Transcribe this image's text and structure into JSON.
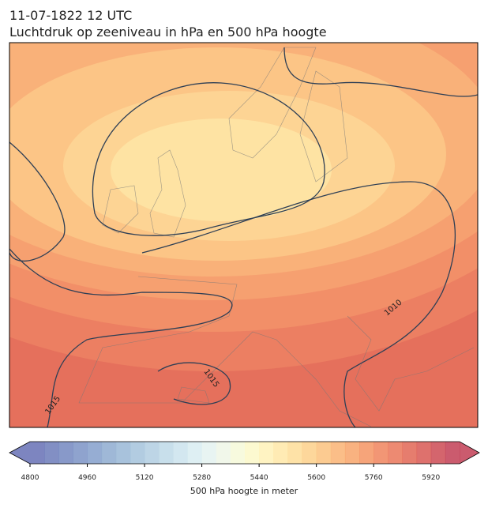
{
  "header": {
    "title": "11-07-1822 12 UTC",
    "subtitle": "Luchtdruk op zeeniveau in hPa en 500 hPa hoogte"
  },
  "map": {
    "isobar_labels": [
      "1010",
      "1015",
      "1015"
    ]
  },
  "colorbar": {
    "label": "500 hPa hoogte in meter",
    "lim": [
      4800,
      6000
    ],
    "ticks": [
      4800,
      4960,
      5120,
      5280,
      5440,
      5600,
      5760,
      5920
    ],
    "colors": [
      "#6670b5",
      "#6c7bba",
      "#7387c0",
      "#7b93c5",
      "#849fcb",
      "#8eabd0",
      "#99b7d6",
      "#a5c3dc",
      "#b1cee2",
      "#bed9e8",
      "#cbe3ed",
      "#d8ecf1",
      "#e4f2f0",
      "#eef6e6",
      "#f6f9d8",
      "#fcf8c8",
      "#fff1b7",
      "#ffe8a7",
      "#fedd98",
      "#fdd08a",
      "#fcc27e",
      "#fab373",
      "#f8a46a",
      "#f59463",
      "#f0845d",
      "#ea7559",
      "#e26655",
      "#d85853",
      "#cd4a53",
      "#c23e55"
    ]
  }
}
